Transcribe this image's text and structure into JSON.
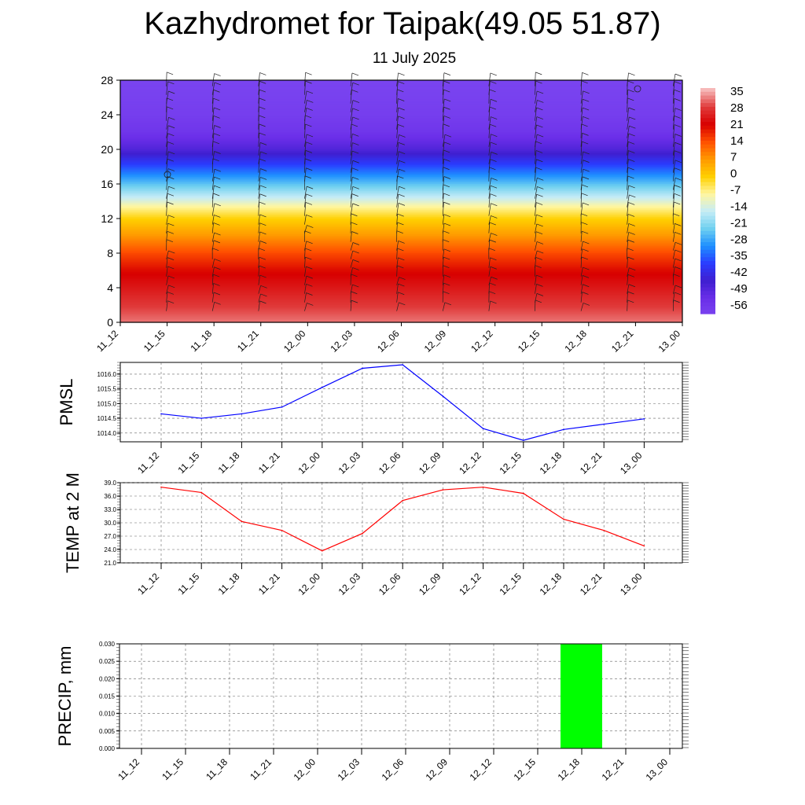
{
  "title": "Kazhydromet for Taipak(49.05 51.87)",
  "subtitle": "11 July 2025",
  "chart_data": [
    {
      "type": "heatmap",
      "name": "vertical-section",
      "xlabel": "",
      "ylabel": "",
      "ylim": [
        0,
        28
      ],
      "yticks": [
        0,
        4,
        8,
        12,
        16,
        20,
        24,
        28
      ],
      "categories": [
        "11_12",
        "11_15",
        "11_18",
        "11_21",
        "12_00",
        "12_03",
        "12_06",
        "12_09",
        "12_12",
        "12_15",
        "12_18",
        "12_21",
        "13_00"
      ],
      "colorbar_labels": [
        "35",
        "28",
        "21",
        "14",
        "7",
        "0",
        "-7",
        "-14",
        "-21",
        "-28",
        "-35",
        "-42",
        "-49",
        "-56"
      ],
      "colorbar_range": [
        -60,
        38
      ],
      "temperature_profile_levels": [
        0,
        2,
        4,
        6,
        8,
        10,
        12,
        13.5,
        14,
        16,
        18,
        20,
        22,
        24,
        28
      ],
      "temperature_profile_values": [
        34,
        30,
        26,
        22,
        16,
        8,
        0,
        -8,
        -12,
        -24,
        -36,
        -48,
        -55,
        -58,
        -60
      ],
      "colors": [
        "#f6b8b8",
        "#e03a3a",
        "#d80000",
        "#ff5000",
        "#ff9900",
        "#ffd000",
        "#fff6a0",
        "#c6ecf6",
        "#6fd0f0",
        "#1e90ff",
        "#2a3cff",
        "#3f1fd0",
        "#6a2ee8",
        "#7a44f0"
      ]
    },
    {
      "type": "line",
      "name": "pmsl",
      "ylabel": "PMSL",
      "ylim": [
        1013.7,
        1016.4
      ],
      "yticks": [
        "1014.0",
        "1014.5",
        "1015.0",
        "1015.5",
        "1016.0"
      ],
      "categories": [
        "11_12",
        "11_15",
        "11_18",
        "11_21",
        "12_00",
        "12_03",
        "12_06",
        "12_09",
        "12_12",
        "12_15",
        "12_18",
        "12_21",
        "13_00"
      ],
      "series": [
        {
          "values": [
            1014.65,
            1014.5,
            1014.65,
            1014.88,
            1015.55,
            1016.2,
            1016.32,
            1015.25,
            1014.15,
            1013.75,
            1014.12,
            1014.3,
            1014.48
          ],
          "color": "#0000ff"
        }
      ]
    },
    {
      "type": "line",
      "name": "temp-2m",
      "ylabel": "TEMP at 2 M",
      "ylim": [
        21.0,
        39.0
      ],
      "yticks": [
        "21.0",
        "24.0",
        "27.0",
        "30.0",
        "33.0",
        "36.0",
        "39.0"
      ],
      "categories": [
        "11_12",
        "11_15",
        "11_18",
        "11_21",
        "12_00",
        "12_03",
        "12_06",
        "12_09",
        "12_12",
        "12_15",
        "12_18",
        "12_21",
        "13_00"
      ],
      "series": [
        {
          "values": [
            38.0,
            36.8,
            30.3,
            28.3,
            23.7,
            27.6,
            35.0,
            37.4,
            38.0,
            36.6,
            30.8,
            28.3,
            24.8
          ],
          "color": "#ff0000"
        }
      ]
    },
    {
      "type": "bar",
      "name": "precip",
      "ylabel": "PRECIP, mm",
      "ylim": [
        0,
        0.03
      ],
      "yticks": [
        "0.000",
        "0.005",
        "0.010",
        "0.015",
        "0.020",
        "0.025",
        "0.030"
      ],
      "categories": [
        "11_12",
        "11_15",
        "11_18",
        "11_21",
        "12_00",
        "12_03",
        "12_06",
        "12_09",
        "12_12",
        "12_15",
        "12_18",
        "12_21",
        "13_00"
      ],
      "values": [
        0,
        0,
        0,
        0,
        0,
        0,
        0,
        0,
        0,
        0,
        0.03,
        0,
        0
      ],
      "color": "#00ff00"
    }
  ]
}
